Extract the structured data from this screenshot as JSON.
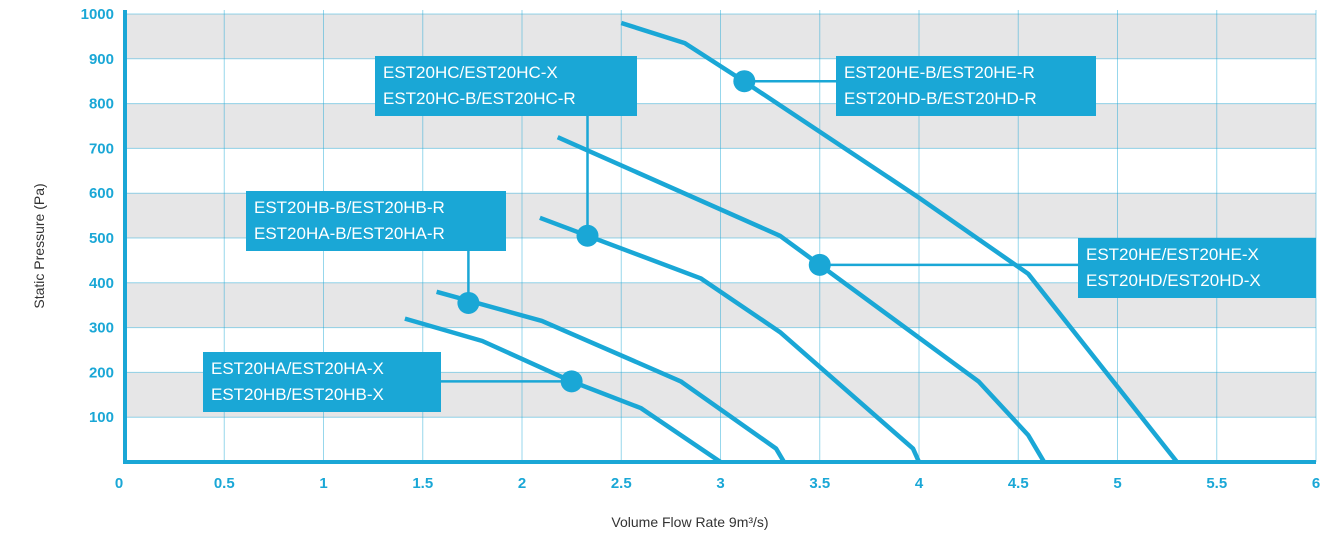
{
  "chart_data": {
    "type": "line",
    "title": "",
    "xlabel": "Volume Flow Rate 9m³/s)",
    "ylabel": "Static Pressure (Pa)",
    "xlim": [
      0,
      6
    ],
    "ylim": [
      0,
      1000
    ],
    "x_ticks": [
      "0",
      "0.5",
      "1",
      "1.5",
      "2",
      "2.5",
      "3",
      "3.5",
      "4",
      "4.5",
      "5",
      "5.5",
      "6"
    ],
    "y_ticks": [
      "100",
      "200",
      "300",
      "400",
      "500",
      "600",
      "700",
      "800",
      "900",
      "1000"
    ],
    "grid": true,
    "series": [
      {
        "points": [
          [
            1.41,
            320
          ],
          [
            1.8,
            270
          ],
          [
            2.25,
            180
          ],
          [
            2.6,
            120
          ],
          [
            3.0,
            0
          ]
        ]
      },
      {
        "points": [
          [
            1.57,
            380
          ],
          [
            2.1,
            315
          ],
          [
            2.8,
            180
          ],
          [
            3.28,
            30
          ],
          [
            3.32,
            0
          ]
        ]
      },
      {
        "points": [
          [
            2.09,
            545
          ],
          [
            2.9,
            410
          ],
          [
            3.3,
            290
          ],
          [
            3.97,
            30
          ],
          [
            4.0,
            0
          ]
        ]
      },
      {
        "points": [
          [
            2.18,
            725
          ],
          [
            3.3,
            505
          ],
          [
            3.5,
            440
          ],
          [
            4.3,
            180
          ],
          [
            4.55,
            60
          ],
          [
            4.63,
            0
          ]
        ]
      },
      {
        "points": [
          [
            2.5,
            980
          ],
          [
            2.82,
            935
          ],
          [
            3.1,
            855
          ],
          [
            4.0,
            590
          ],
          [
            4.55,
            420
          ],
          [
            5.3,
            0
          ]
        ]
      }
    ],
    "annotations": [
      {
        "lines": [
          "EST20HA/EST20HA-X",
          "EST20HB/EST20HB-X"
        ],
        "marker": [
          2.25,
          180
        ]
      },
      {
        "lines": [
          "EST20HB-B/EST20HB-R",
          "EST20HA-B/EST20HA-R"
        ],
        "marker": [
          1.73,
          355
        ]
      },
      {
        "lines": [
          "EST20HC/EST20HC-X",
          "EST20HC-B/EST20HC-R"
        ],
        "marker": [
          2.33,
          505
        ]
      },
      {
        "lines": [
          "EST20HE-B/EST20HE-R",
          "EST20HD-B/EST20HD-R"
        ],
        "marker": [
          3.12,
          850
        ]
      },
      {
        "lines": [
          "EST20HE/EST20HE-X",
          "EST20HD/EST20HD-X"
        ],
        "marker": [
          3.5,
          440
        ]
      }
    ],
    "colors": {
      "line": "#1aa7d6",
      "band": "#e6e6e7",
      "grid": "#1aa7d6",
      "label_bg": "#1aa7d6",
      "label_text": "#ffffff"
    }
  }
}
